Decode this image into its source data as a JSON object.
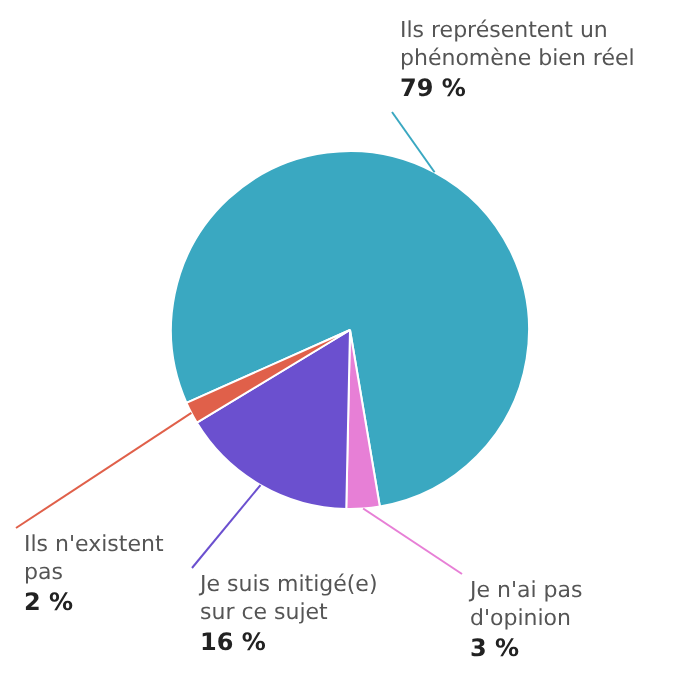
{
  "chart_data": {
    "type": "pie",
    "categories": [
      "Ils représentent un phénomène bien réel",
      "Je n'ai pas d'opinion",
      "Je suis mitigé(e) sur ce sujet",
      "Ils n'existent pas"
    ],
    "values": [
      79,
      3,
      16,
      2
    ],
    "colors": [
      "#3aa8c1",
      "#e77fd6",
      "#6b50cf",
      "#e0604a"
    ],
    "value_labels": [
      "79 %",
      "3 %",
      "16 %",
      "2 %"
    ],
    "legend": false
  }
}
